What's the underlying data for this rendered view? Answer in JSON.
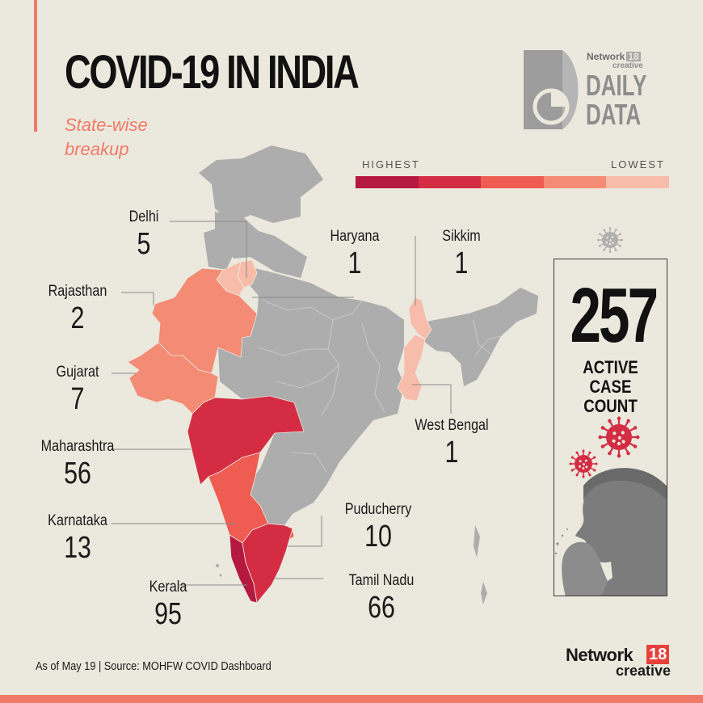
{
  "header": {
    "title": "COVID-19 IN INDIA",
    "subtitle": "State-wise breakup"
  },
  "brand": {
    "network_label": "Network",
    "network_number": "18",
    "creative_label": "creative",
    "daily_label": "DAILY",
    "data_label": "DATA"
  },
  "legend": {
    "highest_label": "HIGHEST",
    "lowest_label": "LOWEST",
    "colors": [
      "#b5193f",
      "#d42d43",
      "#ef5c52",
      "#f48b75",
      "#f8bcaa"
    ]
  },
  "states": [
    {
      "name": "Delhi",
      "value": "5",
      "color": "#f8bcaa"
    },
    {
      "name": "Haryana",
      "value": "1",
      "color": "#f8bcaa"
    },
    {
      "name": "Sikkim",
      "value": "1",
      "color": "#f8bcaa"
    },
    {
      "name": "Rajasthan",
      "value": "2",
      "color": "#f48b75"
    },
    {
      "name": "Gujarat",
      "value": "7",
      "color": "#f48b75"
    },
    {
      "name": "West Bengal",
      "value": "1",
      "color": "#f8bcaa"
    },
    {
      "name": "Maharashtra",
      "value": "56",
      "color": "#d42d43"
    },
    {
      "name": "Karnataka",
      "value": "13",
      "color": "#ef5c52"
    },
    {
      "name": "Puducherry",
      "value": "10",
      "color": "#ef5c52"
    },
    {
      "name": "Kerala",
      "value": "95",
      "color": "#b5193f"
    },
    {
      "name": "Tamil Nadu",
      "value": "66",
      "color": "#d42d43"
    }
  ],
  "map_colors": {
    "other_states": "#adadad",
    "borders": "#c8c8c8"
  },
  "active_cases": {
    "count": "257",
    "label": "ACTIVE\nCASE COUNT"
  },
  "footer": {
    "note": "As of May 19 | Source: MOHFW COVID Dashboard",
    "brand_network": "Network",
    "brand_number": "18",
    "brand_creative": "creative"
  },
  "icons": [
    "virus-icon",
    "coughing-person-icon",
    "daily-data-logo-icon"
  ]
}
